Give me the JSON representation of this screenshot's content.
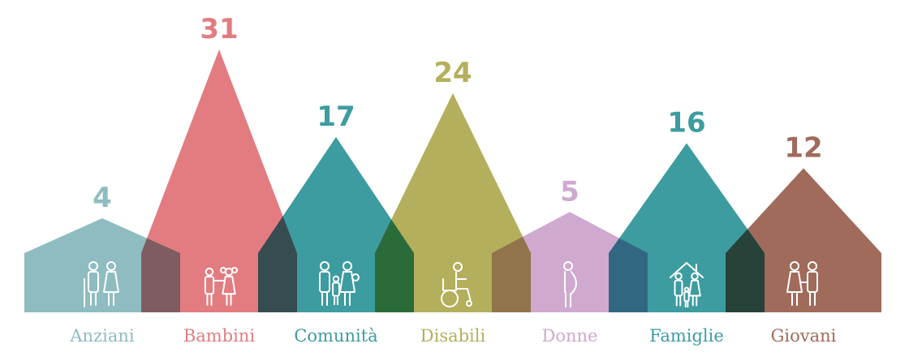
{
  "chart_data": {
    "type": "bar",
    "categories": [
      "Anziani",
      "Bambini",
      "Comunità",
      "Disabili",
      "Donne",
      "Famiglie",
      "Giovani"
    ],
    "values": [
      4,
      31,
      17,
      24,
      5,
      16,
      12
    ],
    "colors": [
      "#8fbcc0",
      "#e27c81",
      "#3d9ca0",
      "#b3af5c",
      "#cfa9cf",
      "#3d9ca0",
      "#a06b5b"
    ],
    "icons": [
      "elderly-couple-icon",
      "children-icon",
      "community-icon",
      "wheelchair-icon",
      "pregnant-woman-icon",
      "family-house-icon",
      "young-couple-icon"
    ],
    "value_labels": [
      "4",
      "31",
      "17",
      "24",
      "5",
      "16",
      "12"
    ],
    "ylim": [
      0,
      31
    ]
  }
}
